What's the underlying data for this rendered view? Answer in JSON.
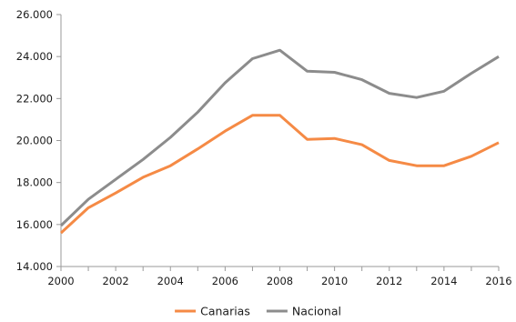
{
  "chart_data": {
    "type": "line",
    "title": "",
    "xlabel": "",
    "ylabel": "",
    "x": [
      2000,
      2001,
      2002,
      2003,
      2004,
      2005,
      2006,
      2007,
      2008,
      2009,
      2010,
      2011,
      2012,
      2013,
      2014,
      2015,
      2016
    ],
    "x_tick_labels": [
      "2000",
      "2002",
      "2004",
      "2006",
      "2008",
      "2010",
      "2012",
      "2014",
      "2016"
    ],
    "x_ticks": [
      2000,
      2002,
      2004,
      2006,
      2008,
      2010,
      2012,
      2014,
      2016
    ],
    "y_tick_labels": [
      "14.000",
      "16.000",
      "18.000",
      "20.000",
      "22.000",
      "24.000",
      "26.000"
    ],
    "y_ticks": [
      14000,
      16000,
      18000,
      20000,
      22000,
      24000,
      26000
    ],
    "ylim": [
      14000,
      26000
    ],
    "xlim": [
      2000,
      2016
    ],
    "grid": false,
    "legend_position": "bottom",
    "series": [
      {
        "name": "Canarias",
        "color": "#f58a45",
        "values": [
          15600,
          16800,
          17500,
          18250,
          18800,
          19600,
          20450,
          21200,
          21200,
          20050,
          20100,
          19800,
          19050,
          18800,
          18800,
          19250,
          19900
        ]
      },
      {
        "name": "Nacional",
        "color": "#8c8c8c",
        "values": [
          15950,
          17200,
          18150,
          19100,
          20150,
          21350,
          22750,
          23900,
          24300,
          23300,
          23250,
          22900,
          22250,
          22050,
          22350,
          23200,
          24000
        ]
      }
    ]
  }
}
